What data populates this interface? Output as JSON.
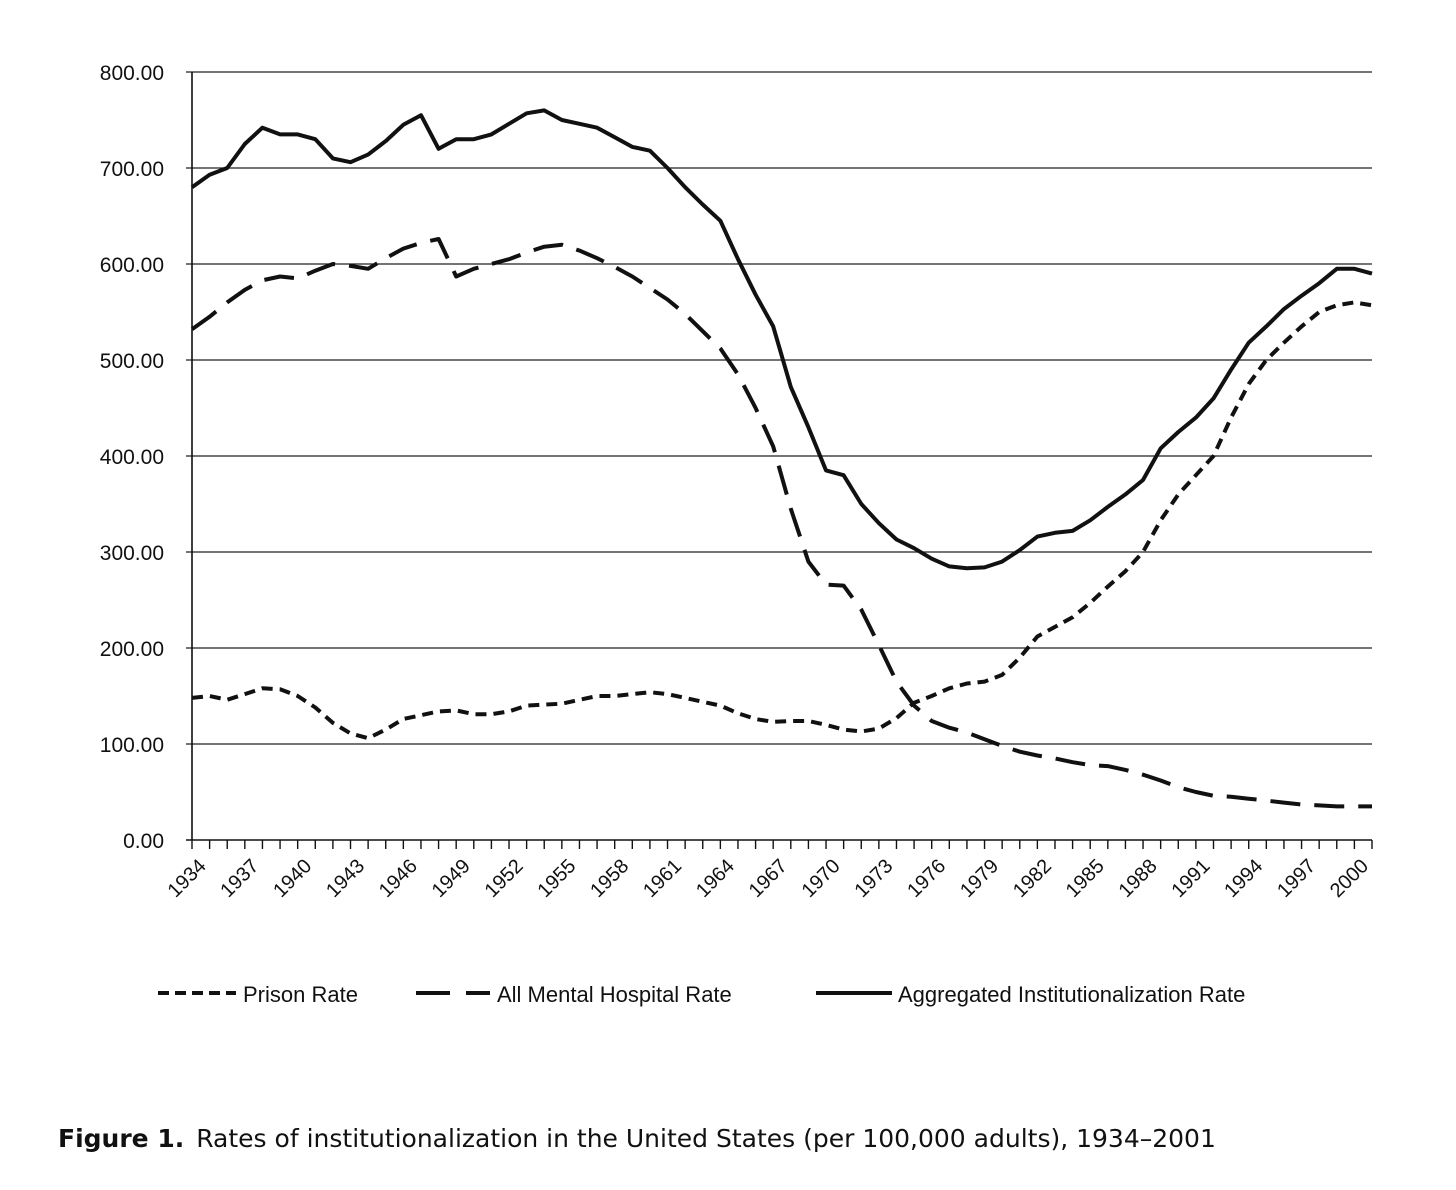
{
  "chart_data": {
    "type": "line",
    "title": "",
    "xlabel": "",
    "ylabel": "",
    "ylim": [
      0,
      800
    ],
    "y_ticks": [
      "0.00",
      "100.00",
      "200.00",
      "300.00",
      "400.00",
      "500.00",
      "600.00",
      "700.00",
      "800.00"
    ],
    "y_tick_values": [
      0,
      100,
      200,
      300,
      400,
      500,
      600,
      700,
      800
    ],
    "x_tick_labels": [
      "1934",
      "1937",
      "1940",
      "1943",
      "1946",
      "1949",
      "1952",
      "1955",
      "1958",
      "1961",
      "1964",
      "1967",
      "1970",
      "1973",
      "1976",
      "1979",
      "1982",
      "1985",
      "1988",
      "1991",
      "1994",
      "1997",
      "2000"
    ],
    "grid": "horizontal",
    "legend_position": "bottom",
    "x": [
      1934,
      1935,
      1936,
      1937,
      1938,
      1939,
      1940,
      1941,
      1942,
      1943,
      1944,
      1945,
      1946,
      1947,
      1948,
      1949,
      1950,
      1951,
      1952,
      1953,
      1954,
      1955,
      1956,
      1957,
      1958,
      1959,
      1960,
      1961,
      1962,
      1963,
      1964,
      1965,
      1966,
      1967,
      1968,
      1969,
      1970,
      1971,
      1972,
      1973,
      1974,
      1975,
      1976,
      1977,
      1978,
      1979,
      1980,
      1981,
      1982,
      1983,
      1984,
      1985,
      1986,
      1987,
      1988,
      1989,
      1990,
      1991,
      1992,
      1993,
      1994,
      1995,
      1996,
      1997,
      1998,
      1999,
      2000,
      2001
    ],
    "series": [
      {
        "name": "Prison Rate",
        "style": "short-dash",
        "values": [
          148,
          150,
          146,
          152,
          158,
          157,
          150,
          138,
          122,
          111,
          106,
          115,
          126,
          130,
          134,
          135,
          131,
          131,
          134,
          140,
          141,
          142,
          146,
          150,
          150,
          152,
          154,
          152,
          148,
          144,
          140,
          132,
          126,
          123,
          124,
          124,
          120,
          115,
          113,
          116,
          127,
          143,
          150,
          158,
          163,
          165,
          172,
          190,
          212,
          222,
          232,
          247,
          264,
          280,
          300,
          333,
          360,
          380,
          400,
          440,
          475,
          500,
          518,
          535,
          550,
          557,
          560,
          557
        ]
      },
      {
        "name": "All Mental Hospital Rate",
        "style": "long-dash",
        "values": [
          532,
          545,
          560,
          573,
          583,
          587,
          585,
          593,
          600,
          598,
          595,
          606,
          616,
          622,
          626,
          587,
          595,
          600,
          605,
          612,
          618,
          620,
          614,
          606,
          597,
          587,
          575,
          563,
          548,
          530,
          512,
          485,
          450,
          410,
          345,
          290,
          266,
          265,
          240,
          203,
          165,
          140,
          124,
          117,
          112,
          105,
          98,
          92,
          88,
          85,
          81,
          78,
          77,
          73,
          68,
          62,
          55,
          50,
          46,
          45,
          43,
          41,
          39,
          37,
          36,
          35,
          35,
          35
        ]
      },
      {
        "name": "Aggregated Institutionalization Rate",
        "style": "solid",
        "values": [
          680,
          693,
          700,
          725,
          742,
          735,
          735,
          730,
          710,
          706,
          714,
          728,
          745,
          755,
          720,
          730,
          730,
          735,
          746,
          757,
          760,
          750,
          746,
          742,
          732,
          722,
          718,
          700,
          680,
          662,
          645,
          605,
          568,
          535,
          472,
          430,
          385,
          380,
          350,
          330,
          313,
          304,
          293,
          285,
          283,
          284,
          290,
          302,
          316,
          320,
          322,
          333,
          347,
          360,
          375,
          408,
          425,
          440,
          460,
          490,
          518,
          535,
          553,
          567,
          580,
          595,
          595,
          590
        ]
      }
    ]
  },
  "caption": {
    "label": "Figure 1.",
    "text": "Rates of institutionalization in the United States (per 100,000 adults), 1934–2001"
  },
  "colors": {
    "line": "#111111",
    "grid": "#222222",
    "background": "#ffffff"
  }
}
